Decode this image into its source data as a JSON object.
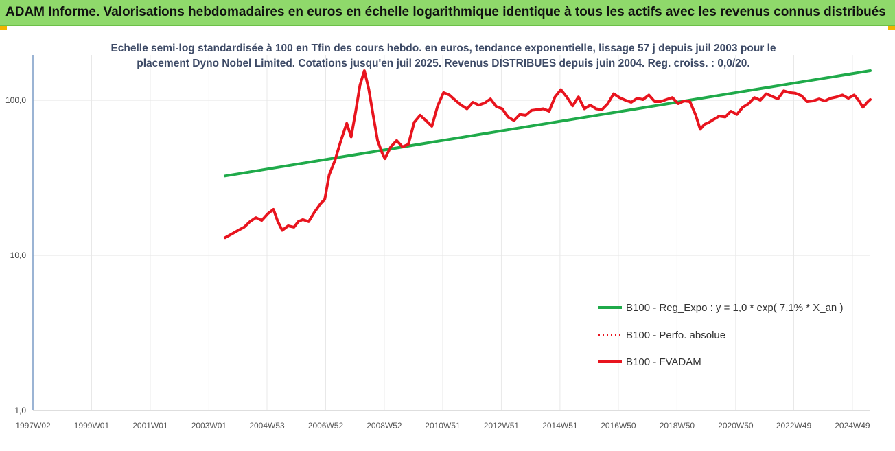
{
  "banner": {
    "title": "ADAM Informe. Valorisations hebdomadaires en euros en échelle logarithmique identique à tous les actifs avec les revenus connus distribués",
    "color": "#8fd96b"
  },
  "chart_data": {
    "type": "line",
    "title_lines": [
      "Echelle semi-log standardisée à 100 en Tfin des cours hebdo. en euros, tendance exponentielle, lissage 57 j depuis juil 2003 pour le",
      "placement Dyno Nobel Limited. Cotations jusqu'en juil 2025. Revenus DISTRIBUES depuis juin 2004. Reg. croiss. : 0,0/20."
    ],
    "xlabel": "",
    "ylabel": "",
    "y_scale": "log",
    "ylim": [
      1,
      200
    ],
    "xlim": [
      1997.0,
      2025.55
    ],
    "y_ticks": [
      {
        "value": 1,
        "label": "1,0"
      },
      {
        "value": 10,
        "label": "10,0"
      },
      {
        "value": 100,
        "label": "100,0"
      }
    ],
    "x_ticks": [
      {
        "value": 1997.0,
        "label": "1997W02"
      },
      {
        "value": 1999.0,
        "label": "1999W01"
      },
      {
        "value": 2001.0,
        "label": "2001W01"
      },
      {
        "value": 2003.0,
        "label": "2003W01"
      },
      {
        "value": 2004.98,
        "label": "2004W53"
      },
      {
        "value": 2006.98,
        "label": "2006W52"
      },
      {
        "value": 2008.98,
        "label": "2008W52"
      },
      {
        "value": 2010.97,
        "label": "2010W51"
      },
      {
        "value": 2012.97,
        "label": "2012W51"
      },
      {
        "value": 2014.97,
        "label": "2014W51"
      },
      {
        "value": 2016.96,
        "label": "2016W50"
      },
      {
        "value": 2018.96,
        "label": "2018W50"
      },
      {
        "value": 2020.96,
        "label": "2020W50"
      },
      {
        "value": 2022.94,
        "label": "2022W49"
      },
      {
        "value": 2024.94,
        "label": "2024W49"
      }
    ],
    "vertical_grid": true,
    "horizontal_grid": true,
    "legend_position": "lower-right",
    "series": [
      {
        "name": "B100 - Reg_Expo : y = 1,0 * exp( 7,1% *  X_an )",
        "color": "#1faa4a",
        "style": "solid",
        "x": [
          2003.55,
          2025.55
        ],
        "y": [
          32.5,
          155
        ]
      },
      {
        "name": "B100 - Perfo. absolue",
        "color": "#e8141e",
        "style": "dotted",
        "x": [],
        "y": []
      },
      {
        "name": "B100 - FVADAM",
        "color": "#e8141e",
        "style": "solid",
        "x": [
          2003.55,
          2003.8,
          2004.0,
          2004.2,
          2004.4,
          2004.6,
          2004.8,
          2005.0,
          2005.2,
          2005.35,
          2005.5,
          2005.7,
          2005.9,
          2006.05,
          2006.2,
          2006.4,
          2006.6,
          2006.8,
          2006.95,
          2007.1,
          2007.3,
          2007.5,
          2007.7,
          2007.85,
          2008.0,
          2008.15,
          2008.3,
          2008.45,
          2008.6,
          2008.75,
          2008.9,
          2009.0,
          2009.2,
          2009.4,
          2009.6,
          2009.8,
          2010.0,
          2010.2,
          2010.4,
          2010.6,
          2010.8,
          2011.0,
          2011.2,
          2011.4,
          2011.6,
          2011.8,
          2012.0,
          2012.2,
          2012.4,
          2012.6,
          2012.8,
          2013.0,
          2013.2,
          2013.4,
          2013.6,
          2013.8,
          2014.0,
          2014.2,
          2014.4,
          2014.6,
          2014.8,
          2015.0,
          2015.2,
          2015.4,
          2015.6,
          2015.8,
          2016.0,
          2016.2,
          2016.4,
          2016.6,
          2016.8,
          2017.0,
          2017.2,
          2017.4,
          2017.6,
          2017.8,
          2018.0,
          2018.2,
          2018.4,
          2018.6,
          2018.8,
          2019.0,
          2019.2,
          2019.4,
          2019.6,
          2019.75,
          2019.9,
          2020.05,
          2020.2,
          2020.4,
          2020.6,
          2020.8,
          2021.0,
          2021.2,
          2021.4,
          2021.6,
          2021.8,
          2022.0,
          2022.2,
          2022.4,
          2022.6,
          2022.8,
          2023.0,
          2023.2,
          2023.4,
          2023.6,
          2023.8,
          2024.0,
          2024.2,
          2024.4,
          2024.6,
          2024.8,
          2025.0,
          2025.15,
          2025.3,
          2025.45,
          2025.55
        ],
        "y": [
          13,
          13.8,
          14.5,
          15.2,
          16.5,
          17.5,
          16.8,
          18.5,
          19.8,
          16.5,
          14.5,
          15.5,
          15.2,
          16.5,
          17,
          16.5,
          19,
          21.5,
          23,
          33,
          41,
          55,
          71,
          58,
          84,
          125,
          155,
          118,
          80,
          55,
          46,
          42,
          50,
          55,
          50,
          52,
          72,
          80,
          74,
          68,
          92,
          112,
          108,
          100,
          93,
          88,
          97,
          93,
          96,
          102,
          91,
          88,
          78,
          74,
          81,
          80,
          86,
          87,
          88,
          85,
          105,
          117,
          105,
          92,
          105,
          88,
          93,
          88,
          87,
          95,
          110,
          104,
          100,
          97,
          103,
          101,
          108,
          98,
          98,
          101,
          104,
          95,
          99,
          98,
          80,
          65,
          70,
          72,
          75,
          79,
          78,
          85,
          81,
          90,
          95,
          104,
          100,
          110,
          106,
          102,
          115,
          112,
          111,
          107,
          98,
          99,
          102,
          99,
          103,
          105,
          108,
          103,
          108,
          100,
          90,
          97,
          101
        ]
      }
    ]
  }
}
